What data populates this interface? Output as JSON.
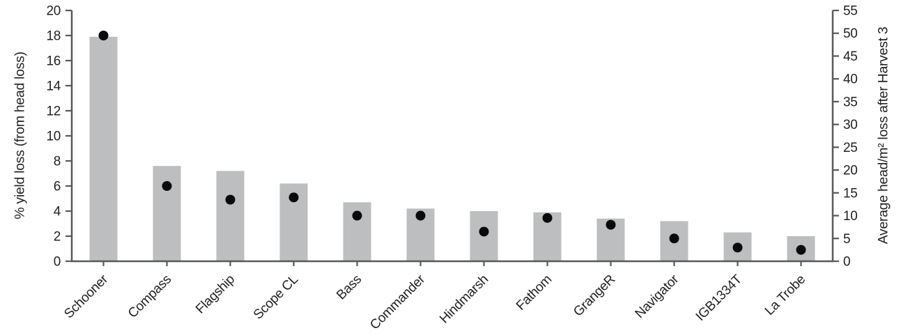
{
  "chart_data": {
    "type": "bar",
    "title": "",
    "categories": [
      "Schooner",
      "Compass",
      "Flagship",
      "Scope CL",
      "Bass",
      "Commander",
      "Hindmarsh",
      "Fathom",
      "GrangeR",
      "Navigator",
      "IGB1334T",
      "La Trobe"
    ],
    "series": [
      {
        "name": "% yield loss (from head loss)",
        "type": "bar",
        "axis": "left",
        "values": [
          17.9,
          7.6,
          7.2,
          6.2,
          4.7,
          4.2,
          4.0,
          3.9,
          3.4,
          3.2,
          2.3,
          2.0
        ]
      },
      {
        "name": "Average head/m² loss after Harvest 3",
        "type": "scatter",
        "axis": "right",
        "values": [
          49.5,
          16.5,
          13.5,
          14,
          10,
          10,
          6.5,
          9.5,
          8,
          5,
          3,
          2.5
        ]
      }
    ],
    "y_left": {
      "label": "% yield loss (from head loss)",
      "range": [
        0,
        20
      ],
      "ticks": [
        0,
        2,
        4,
        6,
        8,
        10,
        12,
        14,
        16,
        18,
        20
      ]
    },
    "y_right": {
      "label": "Average head/m² loss after Harvest 3",
      "range": [
        0,
        55
      ],
      "ticks": [
        0,
        5,
        10,
        15,
        20,
        25,
        30,
        35,
        40,
        45,
        50,
        55
      ]
    },
    "legend": {
      "visible": false
    },
    "grid": false,
    "colors": {
      "bar": "#bcbec0",
      "dot": "#0a0a0a",
      "axis": "#58595b",
      "text": "#231f20"
    }
  }
}
